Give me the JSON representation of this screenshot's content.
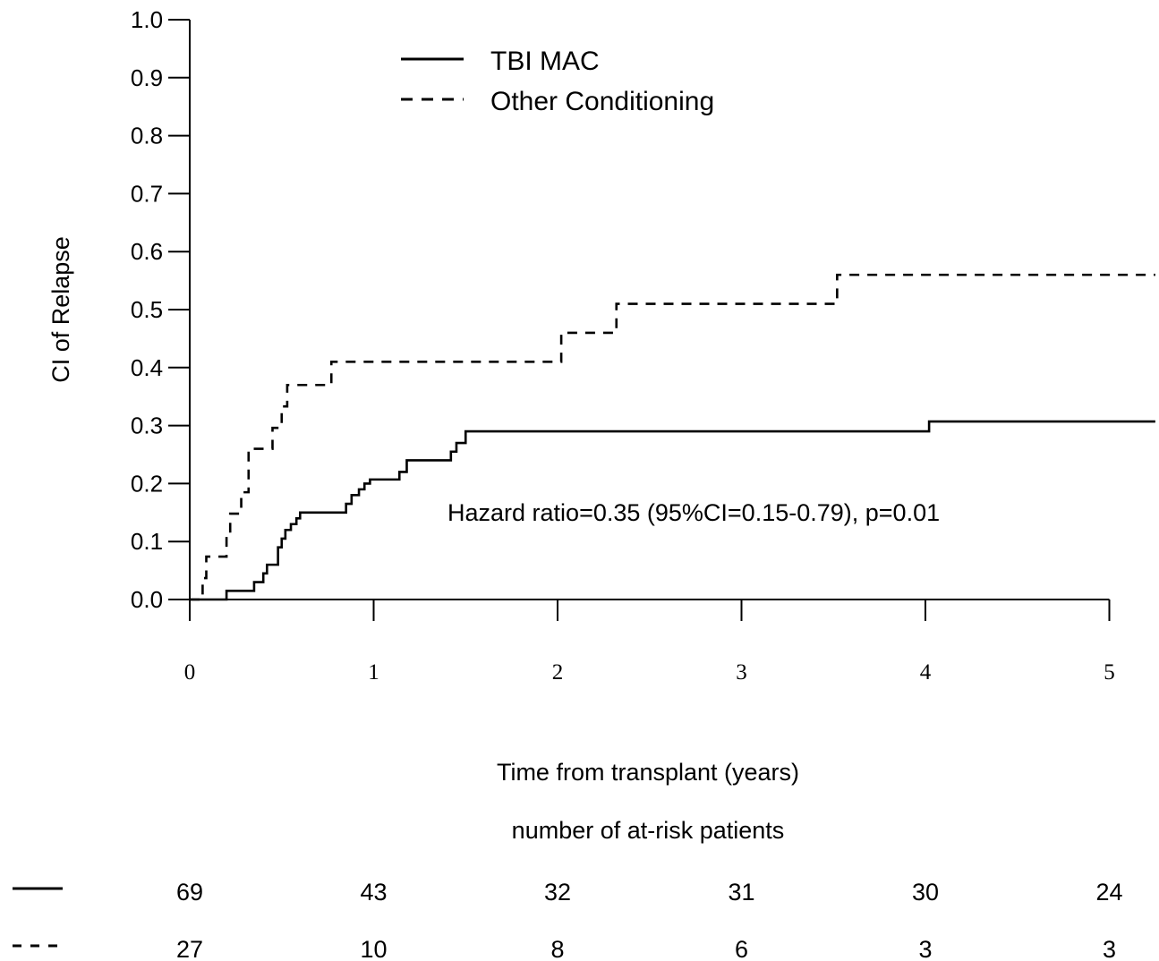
{
  "chart_data": {
    "type": "line",
    "subtype": "step",
    "xlabel": "Time from transplant (years)",
    "ylabel": "CI of Relapse",
    "xlim": [
      0,
      5.25
    ],
    "ylim": [
      0,
      1.0
    ],
    "x_ticks": [
      "0",
      "1",
      "2",
      "3",
      "4",
      "5"
    ],
    "y_ticks": [
      "0.0",
      "0.1",
      "0.2",
      "0.3",
      "0.4",
      "0.5",
      "0.6",
      "0.7",
      "0.8",
      "0.9",
      "1.0"
    ],
    "grid": false,
    "legend_position": "top-center",
    "annotation": "Hazard ratio=0.35 (95%CI=0.15-0.79), p=0.01",
    "series": [
      {
        "name": "TBI MAC",
        "line_style": "solid",
        "x": [
          0,
          0.2,
          0.35,
          0.4,
          0.42,
          0.48,
          0.5,
          0.52,
          0.55,
          0.58,
          0.6,
          0.85,
          0.88,
          0.92,
          0.95,
          0.98,
          1.14,
          1.18,
          1.42,
          1.45,
          1.5,
          4.02,
          5.25
        ],
        "y": [
          0,
          0.015,
          0.03,
          0.045,
          0.06,
          0.09,
          0.105,
          0.12,
          0.13,
          0.14,
          0.15,
          0.165,
          0.18,
          0.19,
          0.2,
          0.207,
          0.22,
          0.24,
          0.255,
          0.27,
          0.29,
          0.307,
          0.307
        ]
      },
      {
        "name": "Other Conditioning",
        "line_style": "dashed",
        "x": [
          0,
          0.07,
          0.09,
          0.2,
          0.22,
          0.28,
          0.32,
          0.45,
          0.5,
          0.53,
          0.55,
          0.77,
          2.02,
          2.32,
          3.52,
          5.25
        ],
        "y": [
          0,
          0.037,
          0.074,
          0.11,
          0.148,
          0.185,
          0.26,
          0.296,
          0.333,
          0.37,
          0.37,
          0.41,
          0.46,
          0.51,
          0.56,
          0.56
        ]
      }
    ],
    "risk_table": {
      "title": "number of at-risk patients",
      "times": [
        0,
        1,
        2,
        3,
        4,
        5
      ],
      "rows": [
        {
          "series": "TBI MAC",
          "line_style": "solid",
          "counts": [
            "69",
            "43",
            "32",
            "31",
            "30",
            "24"
          ]
        },
        {
          "series": "Other Conditioning",
          "line_style": "dashed",
          "counts": [
            "27",
            "10",
            "8",
            "6",
            "3",
            "3"
          ]
        }
      ]
    }
  }
}
